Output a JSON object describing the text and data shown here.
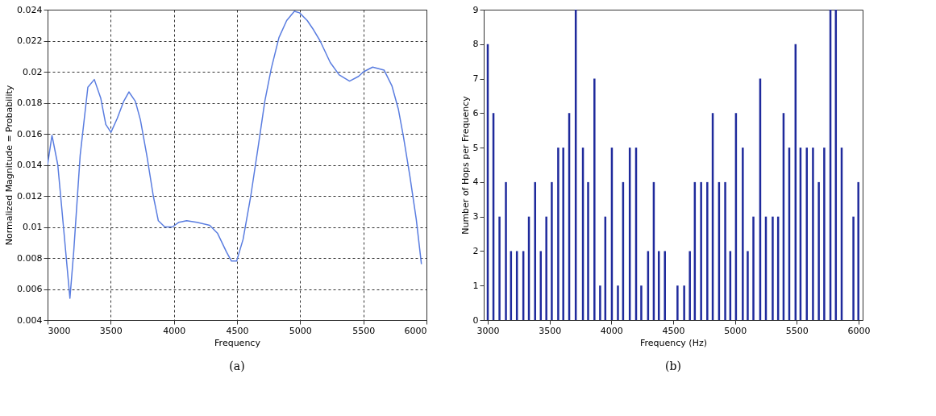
{
  "chart_data": [
    {
      "type": "line",
      "xlabel": "Frequency",
      "ylabel": "Normalized Magnitude = Probability",
      "annotations": [
        "(a)"
      ],
      "x": [
        3000,
        3035,
        3081,
        3126,
        3177,
        3207,
        3258,
        3319,
        3370,
        3421,
        3461,
        3502,
        3552,
        3603,
        3644,
        3695,
        3735,
        3786,
        3837,
        3877,
        3928,
        3989,
        4040,
        4101,
        4182,
        4284,
        4345,
        4416,
        4456,
        4497,
        4548,
        4609,
        4670,
        4720,
        4771,
        4832,
        4893,
        4954,
        4995,
        5056,
        5106,
        5157,
        5238,
        5309,
        5391,
        5462,
        5502,
        5574,
        5665,
        5726,
        5777,
        5818,
        5868,
        5919,
        5960
      ],
      "series": [
        {
          "color": "#5a7de0",
          "values": [
            0.014,
            0.0159,
            0.014,
            0.01,
            0.0054,
            0.0084,
            0.0146,
            0.019,
            0.0195,
            0.0183,
            0.0166,
            0.0161,
            0.017,
            0.0181,
            0.0187,
            0.0181,
            0.0169,
            0.0146,
            0.012,
            0.0104,
            0.01,
            0.01,
            0.0103,
            0.0104,
            0.0103,
            0.0101,
            0.0096,
            0.0084,
            0.0078,
            0.0078,
            0.0092,
            0.012,
            0.0153,
            0.0181,
            0.0202,
            0.0222,
            0.0233,
            0.0239,
            0.0238,
            0.0233,
            0.0227,
            0.022,
            0.0206,
            0.0198,
            0.0194,
            0.0197,
            0.02,
            0.0203,
            0.0201,
            0.0191,
            0.0176,
            0.0158,
            0.0133,
            0.0105,
            0.0076
          ]
        }
      ],
      "xlim": [
        3000,
        6000
      ],
      "xticks": [
        3000,
        3500,
        4000,
        4500,
        5000,
        5500,
        6000
      ],
      "ylim": [
        0.004,
        0.024
      ],
      "yticks": [
        0.004,
        0.006,
        0.008,
        0.01,
        0.012,
        0.014,
        0.016,
        0.018,
        0.02,
        0.022,
        0.024
      ],
      "grid": true,
      "marker": "none",
      "line_style": "solid"
    },
    {
      "type": "bar",
      "xlabel": "Frequency (Hz)",
      "ylabel": "Number of Hops per Frequency",
      "annotations": [
        "(b)"
      ],
      "x": [
        3000,
        3046,
        3095,
        3147,
        3188,
        3236,
        3288,
        3333,
        3383,
        3429,
        3474,
        3518,
        3570,
        3611,
        3659,
        3712,
        3770,
        3812,
        3863,
        3909,
        3951,
        4004,
        4053,
        4095,
        4149,
        4200,
        4242,
        4297,
        4343,
        4384,
        4433,
        4535,
        4589,
        4635,
        4675,
        4726,
        4776,
        4820,
        4871,
        4921,
        4962,
        5008,
        5063,
        5103,
        5149,
        5204,
        5250,
        5305,
        5349,
        5393,
        5439,
        5490,
        5530,
        5581,
        5631,
        5678,
        5722,
        5772,
        5816,
        5863,
        5958,
        5998
      ],
      "series": [
        {
          "color": "#1f2a9c",
          "values": [
            8,
            6,
            3,
            4,
            2,
            2,
            2,
            3,
            4,
            2,
            3,
            4,
            5,
            5,
            6,
            9,
            5,
            4,
            7,
            1,
            3,
            5,
            1,
            4,
            5,
            5,
            1,
            2,
            4,
            2,
            2,
            1,
            1,
            2,
            4,
            4,
            4,
            6,
            4,
            4,
            2,
            6,
            5,
            2,
            3,
            7,
            3,
            3,
            3,
            6,
            5,
            8,
            5,
            5,
            5,
            4,
            5,
            9,
            9,
            5,
            3,
            4
          ]
        }
      ],
      "xlim": [
        3000,
        6000
      ],
      "xticks": [
        3000,
        3500,
        4000,
        4500,
        5000,
        5500,
        6000
      ],
      "ylim": [
        0,
        9
      ],
      "yticks": [
        0,
        1,
        2,
        3,
        4,
        5,
        6,
        7,
        8,
        9
      ],
      "grid": false
    }
  ]
}
